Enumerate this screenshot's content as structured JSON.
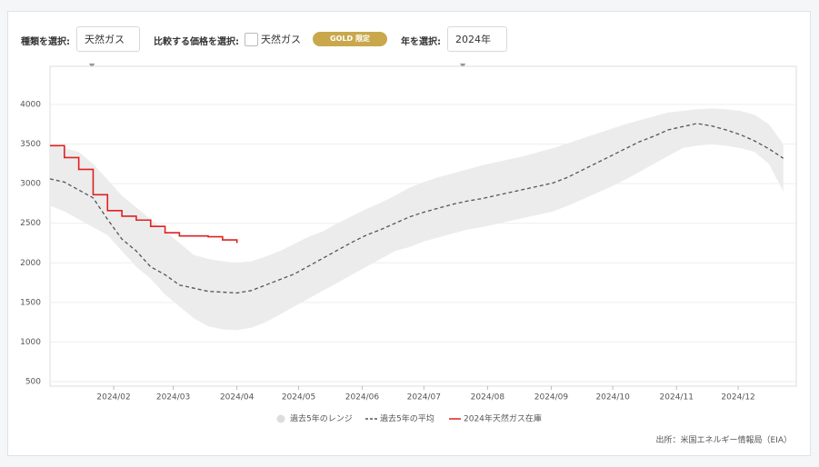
{
  "controls": {
    "type_label": "種類を選択:",
    "type_value": "天然ガス",
    "compare_label": "比較する価格を選択:",
    "compare_option": "天然ガス",
    "badge": "GOLD 限定",
    "year_label": "年を選択:",
    "year_value": "2024年"
  },
  "chart_data": {
    "type": "line",
    "source": "出所：米国エネルギー情報局（EIA）",
    "x": [
      0,
      1,
      2,
      3,
      4,
      5,
      6,
      7,
      8,
      9,
      10,
      11,
      12,
      13,
      14,
      15,
      16,
      17,
      18,
      19,
      20,
      21,
      22,
      23,
      24,
      25,
      26,
      27,
      28,
      29,
      30,
      31,
      32,
      33,
      34,
      35,
      36,
      37,
      38,
      39,
      40,
      41,
      42,
      43,
      44,
      45,
      46,
      47,
      48,
      49,
      50,
      51
    ],
    "xlim": [
      0,
      51.9
    ],
    "xticks": [
      {
        "value": 4.43,
        "label": "2024/02"
      },
      {
        "value": 8.57,
        "label": "2024/03"
      },
      {
        "value": 13,
        "label": "2024/04"
      },
      {
        "value": 17.29,
        "label": "2024/05"
      },
      {
        "value": 21.71,
        "label": "2024/06"
      },
      {
        "value": 26,
        "label": "2024/07"
      },
      {
        "value": 30.43,
        "label": "2024/08"
      },
      {
        "value": 34.86,
        "label": "2024/09"
      },
      {
        "value": 39.14,
        "label": "2024/10"
      },
      {
        "value": 43.57,
        "label": "2024/11"
      },
      {
        "value": 47.86,
        "label": "2024/12"
      }
    ],
    "ylim": [
      443,
      4482
    ],
    "yticks": [
      500,
      1000,
      1500,
      2000,
      2500,
      3000,
      3500,
      4000
    ],
    "grid": true,
    "series": [
      {
        "name": "過去5年のレンジ",
        "color": "#ececec",
        "high": [
          3500,
          3450,
          3400,
          3250,
          3050,
          2850,
          2700,
          2550,
          2400,
          2250,
          2100,
          2050,
          2020,
          2000,
          2020,
          2080,
          2150,
          2240,
          2330,
          2400,
          2500,
          2590,
          2680,
          2760,
          2850,
          2950,
          3020,
          3080,
          3130,
          3180,
          3230,
          3270,
          3310,
          3350,
          3400,
          3450,
          3510,
          3570,
          3630,
          3690,
          3750,
          3800,
          3850,
          3900,
          3920,
          3940,
          3950,
          3940,
          3920,
          3870,
          3750,
          3500
        ],
        "low": [
          2720,
          2650,
          2550,
          2450,
          2350,
          2150,
          1950,
          1800,
          1600,
          1450,
          1300,
          1200,
          1160,
          1150,
          1180,
          1250,
          1350,
          1450,
          1550,
          1650,
          1750,
          1850,
          1950,
          2050,
          2150,
          2200,
          2270,
          2320,
          2370,
          2420,
          2450,
          2490,
          2530,
          2570,
          2610,
          2650,
          2720,
          2800,
          2880,
          2960,
          3050,
          3150,
          3250,
          3350,
          3450,
          3480,
          3500,
          3480,
          3450,
          3400,
          3250,
          2900
        ]
      },
      {
        "name": "過去5年の平均",
        "color": "#555555",
        "dashed": true,
        "values": [
          3060,
          3020,
          2920,
          2820,
          2550,
          2300,
          2150,
          1950,
          1850,
          1720,
          1680,
          1640,
          1630,
          1620,
          1650,
          1720,
          1790,
          1860,
          1960,
          2060,
          2160,
          2260,
          2350,
          2420,
          2500,
          2580,
          2640,
          2690,
          2740,
          2780,
          2810,
          2850,
          2890,
          2930,
          2970,
          3010,
          3080,
          3170,
          3260,
          3350,
          3440,
          3530,
          3600,
          3680,
          3720,
          3760,
          3730,
          3680,
          3620,
          3540,
          3440,
          3320
        ]
      },
      {
        "name": "2024年天然ガス在庫",
        "color": "#e02020",
        "step": true,
        "values": [
          3480,
          3330,
          3180,
          2860,
          2660,
          2590,
          2540,
          2460,
          2380,
          2340,
          2340,
          2330,
          2290,
          2250,
          null,
          null,
          null,
          null,
          null,
          null,
          null,
          null,
          null,
          null,
          null,
          null,
          null,
          null,
          null,
          null,
          null,
          null,
          null,
          null,
          null,
          null,
          null,
          null,
          null,
          null,
          null,
          null,
          null,
          null,
          null,
          null,
          null,
          null,
          null,
          null,
          null,
          null
        ]
      }
    ]
  }
}
